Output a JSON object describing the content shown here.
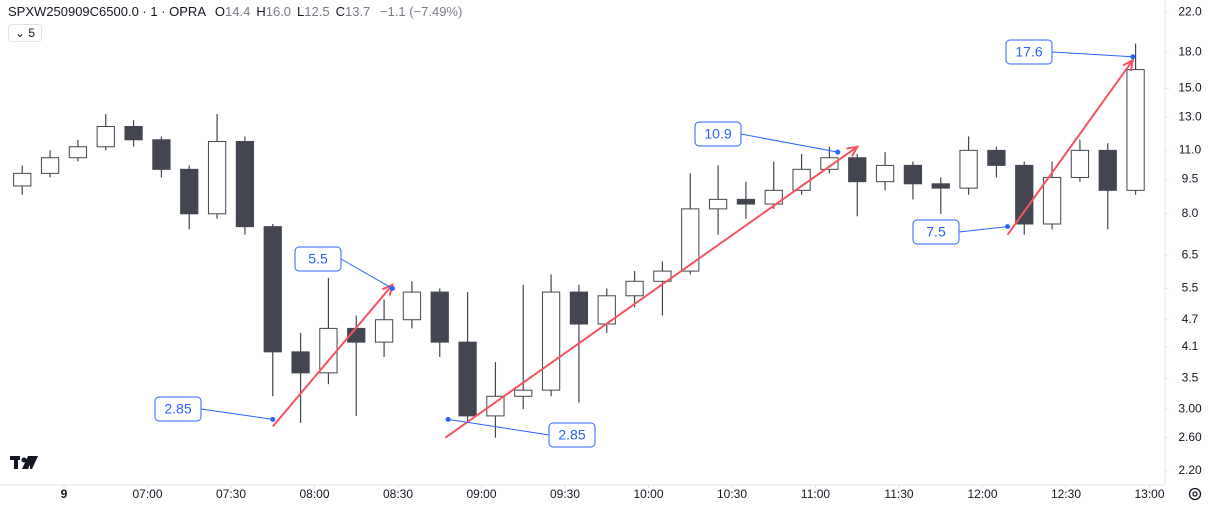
{
  "chart_data": {
    "type": "candlestick",
    "title": "SPXW250909C6500.0 · 1 · OPRA",
    "legend": [
      {
        "key": "O",
        "value": "14.4"
      },
      {
        "key": "H",
        "value": "16.0"
      },
      {
        "key": "L",
        "value": "12.5"
      },
      {
        "key": "C",
        "value": "13.7"
      }
    ],
    "change": "−1.1 (−7.49%)",
    "indicator_count": "5",
    "log_scale": true,
    "up_color": "#ffffff",
    "down_color": "#434651",
    "wick_color": "#434651",
    "arrow_color": "#f7525f",
    "callout_color": "#2962ff",
    "x": [
      "06:10",
      "06:20",
      "06:30",
      "06:40",
      "06:50",
      "07:00",
      "07:10",
      "07:20",
      "07:30",
      "07:40",
      "07:50",
      "08:00",
      "08:10",
      "08:20",
      "08:30",
      "08:40",
      "08:50",
      "09:00",
      "09:10",
      "09:20",
      "09:30",
      "09:40",
      "09:50",
      "10:00",
      "10:10",
      "10:20",
      "10:30",
      "10:40",
      "10:50",
      "11:00",
      "11:10",
      "11:20",
      "11:30",
      "11:40",
      "11:50",
      "12:00",
      "12:10",
      "12:20",
      "12:30",
      "12:40",
      "12:50"
    ],
    "open": [
      9.2,
      9.8,
      10.6,
      11.2,
      12.4,
      11.6,
      10.0,
      8.0,
      11.5,
      7.5,
      4.0,
      3.6,
      4.5,
      4.2,
      4.7,
      5.4,
      4.2,
      2.9,
      3.2,
      3.3,
      5.4,
      4.6,
      5.3,
      5.7,
      6.0,
      8.2,
      8.6,
      8.4,
      9.0,
      10.0,
      10.6,
      9.4,
      10.2,
      9.3,
      9.1,
      11.0,
      10.2,
      7.6,
      9.6,
      11.0,
      9.0
    ],
    "high": [
      10.2,
      11.0,
      11.6,
      13.2,
      12.8,
      11.8,
      10.2,
      13.2,
      11.8,
      7.6,
      4.4,
      5.8,
      4.8,
      5.2,
      5.7,
      5.5,
      5.4,
      3.8,
      5.6,
      5.9,
      5.6,
      5.5,
      6.0,
      6.3,
      9.8,
      10.2,
      9.4,
      10.4,
      10.8,
      11.2,
      10.8,
      10.9,
      10.4,
      9.6,
      11.8,
      11.2,
      10.4,
      10.4,
      11.6,
      11.4,
      18.8
    ],
    "low": [
      8.8,
      9.6,
      10.4,
      11.0,
      11.2,
      9.6,
      7.4,
      7.8,
      7.2,
      3.2,
      2.8,
      3.4,
      2.9,
      3.9,
      4.5,
      3.9,
      2.8,
      2.6,
      3.0,
      3.2,
      3.1,
      4.4,
      5.0,
      4.8,
      5.9,
      7.2,
      7.8,
      8.2,
      8.8,
      9.8,
      7.9,
      9.0,
      8.6,
      8.0,
      8.8,
      9.6,
      7.2,
      7.4,
      9.4,
      7.4,
      8.8
    ],
    "close": [
      9.8,
      10.6,
      11.2,
      12.4,
      11.6,
      10.0,
      8.0,
      11.5,
      7.5,
      4.0,
      3.6,
      4.5,
      4.2,
      4.7,
      5.4,
      4.2,
      2.9,
      3.2,
      3.3,
      5.4,
      4.6,
      5.3,
      5.7,
      6.0,
      8.2,
      8.6,
      8.4,
      9.0,
      10.0,
      10.6,
      9.4,
      10.2,
      9.3,
      9.1,
      11.0,
      10.2,
      7.6,
      9.6,
      11.0,
      9.0,
      16.5
    ],
    "ylim": [
      2.05,
      23.4
    ],
    "yticks": [
      {
        "value": 2.2,
        "label": "2.20"
      },
      {
        "value": 2.6,
        "label": "2.60"
      },
      {
        "value": 3,
        "label": "3.00"
      },
      3.5,
      4.1,
      4.7,
      5.5,
      6.5,
      {
        "value": 8,
        "label": "8.0"
      },
      9.5,
      {
        "value": 11,
        "label": "11.0"
      },
      {
        "value": 13,
        "label": "13.0"
      },
      {
        "value": 15,
        "label": "15.0"
      },
      {
        "value": 18,
        "label": "18.0"
      },
      {
        "value": 22,
        "label": "22.0"
      }
    ],
    "xticks": [
      {
        "value": "06:30",
        "label": "9"
      },
      "07:00",
      "07:30",
      "08:00",
      "08:30",
      "09:00",
      "09:30",
      "10:00",
      "10:30",
      "11:00",
      "11:30",
      "12:00",
      "12:30",
      "13:00"
    ],
    "annotations": [
      {
        "x": "07:45",
        "value": 2.85
      },
      {
        "x": "08:28",
        "value": 5.5
      },
      {
        "x": "08:48",
        "value": 2.85
      },
      {
        "x": "11:08",
        "value": 10.9
      },
      {
        "x": "12:09",
        "value": 7.5
      },
      {
        "x": "12:54",
        "value": 17.6
      }
    ],
    "arrows": [
      {
        "from": {
          "x": "07:45",
          "y": 2.75
        },
        "to": {
          "x": "08:28",
          "y": 5.6
        }
      },
      {
        "from": {
          "x": "08:47",
          "y": 2.6
        },
        "to": {
          "x": "11:15",
          "y": 11.2
        }
      },
      {
        "from": {
          "x": "12:09",
          "y": 7.2
        },
        "to": {
          "x": "12:54",
          "y": 17.3
        }
      }
    ]
  }
}
